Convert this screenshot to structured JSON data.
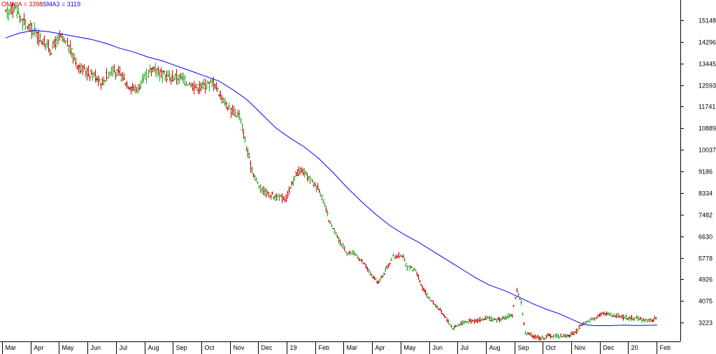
{
  "chart_data": {
    "type": "line",
    "legend": [
      {
        "name": "OMNIA = 3398",
        "color": "#cc0000"
      },
      {
        "name": "SMA3 = 3119",
        "color": "#0000ff"
      }
    ],
    "x_tick_labels": [
      "Mar",
      "Apr",
      "May",
      "Jun",
      "Jul",
      "Aug",
      "Sep",
      "Oct",
      "Nov",
      "Dec",
      "19",
      "Feb",
      "Mar",
      "Apr",
      "May",
      "Jun",
      "Jul",
      "Aug",
      "Sep",
      "Oct",
      "Nov",
      "Dec",
      "20",
      "Feb"
    ],
    "y_tick_labels": [
      15148,
      14296,
      13445,
      12593,
      11741,
      10889,
      10037,
      9186,
      8334,
      7482,
      6630,
      5778,
      4926,
      4075,
      3223
    ],
    "ylim": [
      2480,
      15950
    ],
    "grid": false,
    "up_color": "#22aa22",
    "down_color": "#cc0000",
    "price_series": {
      "name": "OMNIA",
      "points": [
        [
          0,
          15400
        ],
        [
          0.3,
          15700
        ],
        [
          0.6,
          15100
        ],
        [
          1.0,
          14700
        ],
        [
          1.3,
          14300
        ],
        [
          1.6,
          14000
        ],
        [
          1.9,
          14500
        ],
        [
          2.2,
          14100
        ],
        [
          2.5,
          13400
        ],
        [
          2.8,
          13100
        ],
        [
          3.1,
          13000
        ],
        [
          3.4,
          12700
        ],
        [
          3.7,
          13200
        ],
        [
          4.0,
          13000
        ],
        [
          4.3,
          12600
        ],
        [
          4.6,
          12400
        ],
        [
          4.9,
          12900
        ],
        [
          5.2,
          13300
        ],
        [
          5.5,
          13000
        ],
        [
          5.8,
          12900
        ],
        [
          6.1,
          12900
        ],
        [
          6.4,
          12700
        ],
        [
          6.7,
          12500
        ],
        [
          7.0,
          12600
        ],
        [
          7.3,
          12700
        ],
        [
          7.6,
          12100
        ],
        [
          7.9,
          11600
        ],
        [
          8.2,
          11400
        ],
        [
          8.4,
          10400
        ],
        [
          8.6,
          9400
        ],
        [
          8.9,
          8600
        ],
        [
          9.2,
          8300
        ],
        [
          9.5,
          8200
        ],
        [
          9.8,
          8100
        ],
        [
          10.0,
          8500
        ],
        [
          10.2,
          9100
        ],
        [
          10.4,
          9200
        ],
        [
          10.6,
          9000
        ],
        [
          10.8,
          8700
        ],
        [
          11.0,
          8500
        ],
        [
          11.2,
          7800
        ],
        [
          11.4,
          7100
        ],
        [
          11.6,
          6700
        ],
        [
          11.8,
          6300
        ],
        [
          12.0,
          6000
        ],
        [
          12.3,
          5900
        ],
        [
          12.6,
          5500
        ],
        [
          12.9,
          5000
        ],
        [
          13.1,
          4800
        ],
        [
          13.3,
          5200
        ],
        [
          13.6,
          5800
        ],
        [
          13.9,
          5900
        ],
        [
          14.1,
          5400
        ],
        [
          14.4,
          5300
        ],
        [
          14.6,
          4700
        ],
        [
          14.8,
          4300
        ],
        [
          15.1,
          3900
        ],
        [
          15.4,
          3500
        ],
        [
          15.7,
          3000
        ],
        [
          16.0,
          3200
        ],
        [
          16.3,
          3300
        ],
        [
          16.6,
          3300
        ],
        [
          16.9,
          3400
        ],
        [
          17.2,
          3300
        ],
        [
          17.5,
          3400
        ],
        [
          17.8,
          3500
        ],
        [
          17.95,
          4500
        ],
        [
          18.1,
          4000
        ],
        [
          18.25,
          2800
        ],
        [
          18.5,
          2700
        ],
        [
          18.8,
          2600
        ],
        [
          19.1,
          2700
        ],
        [
          19.4,
          2700
        ],
        [
          19.7,
          2700
        ],
        [
          20.0,
          2800
        ],
        [
          20.2,
          3100
        ],
        [
          20.5,
          3300
        ],
        [
          20.8,
          3500
        ],
        [
          21.1,
          3600
        ],
        [
          21.4,
          3500
        ],
        [
          21.7,
          3450
        ],
        [
          22.0,
          3400
        ],
        [
          22.3,
          3350
        ],
        [
          22.6,
          3300
        ],
        [
          22.9,
          3398
        ]
      ]
    },
    "sma_series": {
      "name": "SMA3",
      "points": [
        [
          0,
          14450
        ],
        [
          0.5,
          14650
        ],
        [
          1.0,
          14750
        ],
        [
          1.5,
          14700
        ],
        [
          2.0,
          14600
        ],
        [
          2.5,
          14500
        ],
        [
          3.0,
          14400
        ],
        [
          3.5,
          14250
        ],
        [
          4.0,
          14050
        ],
        [
          4.5,
          13900
        ],
        [
          5.0,
          13700
        ],
        [
          5.5,
          13550
        ],
        [
          6.0,
          13350
        ],
        [
          6.5,
          13150
        ],
        [
          7.0,
          12950
        ],
        [
          7.5,
          12750
        ],
        [
          8.0,
          12400
        ],
        [
          8.5,
          12000
        ],
        [
          9.0,
          11450
        ],
        [
          9.5,
          10900
        ],
        [
          10.0,
          10500
        ],
        [
          10.5,
          10150
        ],
        [
          11.0,
          9700
        ],
        [
          11.5,
          9150
        ],
        [
          12.0,
          8550
        ],
        [
          12.5,
          8000
        ],
        [
          13.0,
          7500
        ],
        [
          13.5,
          7050
        ],
        [
          14.0,
          6700
        ],
        [
          14.5,
          6400
        ],
        [
          15.0,
          6050
        ],
        [
          15.5,
          5700
        ],
        [
          16.0,
          5350
        ],
        [
          16.5,
          5000
        ],
        [
          17.0,
          4700
        ],
        [
          17.5,
          4500
        ],
        [
          18.0,
          4250
        ],
        [
          18.5,
          3980
        ],
        [
          19.0,
          3750
        ],
        [
          19.5,
          3550
        ],
        [
          20.0,
          3300
        ],
        [
          20.3,
          3150
        ],
        [
          20.7,
          3100
        ],
        [
          21.2,
          3100
        ],
        [
          21.7,
          3120
        ],
        [
          22.2,
          3110
        ],
        [
          22.9,
          3119
        ]
      ]
    }
  }
}
